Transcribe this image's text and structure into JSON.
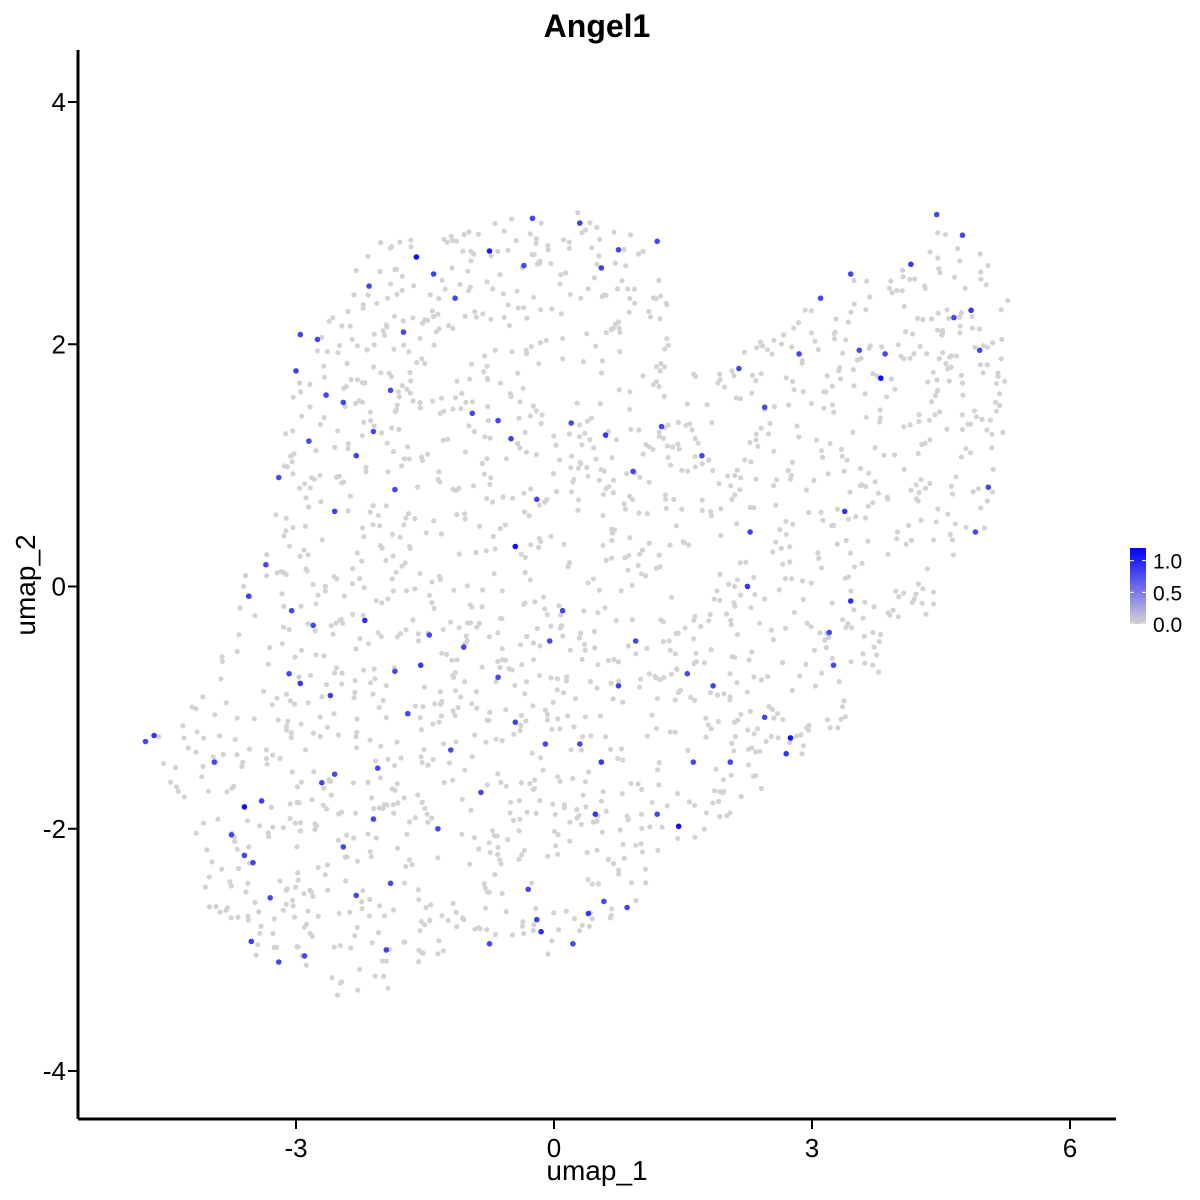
{
  "chart_data": {
    "type": "scatter",
    "title": "Angel1",
    "xlabel": "umap_1",
    "ylabel": "umap_2",
    "xlim": [
      -5.45,
      6.5
    ],
    "ylim": [
      -4.35,
      4.42
    ],
    "xticks": [
      -3,
      0,
      3,
      6
    ],
    "xtick_labels": [
      "-3",
      "0",
      "3",
      "6"
    ],
    "yticks": [
      -4,
      -2,
      0,
      2,
      4
    ],
    "ytick_labels": [
      "-4",
      "-2",
      "0",
      "2",
      "4"
    ],
    "grid": false,
    "legend": {
      "position": "right",
      "type": "colorbar",
      "ticks": [
        0.0,
        0.5,
        1.0
      ],
      "tick_labels": [
        "0.0",
        "0.5",
        "1.0"
      ],
      "range": [
        0,
        1.2
      ],
      "low_color": "#d3d3d3",
      "high_color": "#0000ff"
    },
    "colors": {
      "low": "#d3d3d3",
      "high": "#0000ff"
    },
    "point_count_estimate": 1900,
    "points": [
      [
        -4.75,
        -1.28,
        0.8
      ],
      [
        -4.65,
        -1.23,
        0.9
      ],
      [
        -3.6,
        -1.82,
        1.15
      ],
      [
        -3.95,
        -1.45,
        0.8
      ],
      [
        -3.75,
        -2.05,
        0.8
      ],
      [
        -3.55,
        -0.08,
        0.85
      ],
      [
        -3.4,
        -1.77,
        0.85
      ],
      [
        -3.5,
        -2.28,
        0.8
      ],
      [
        -3.3,
        -2.57,
        0.8
      ],
      [
        -3.52,
        -2.93,
        0.85
      ],
      [
        -3.08,
        -0.72,
        0.8
      ],
      [
        -2.95,
        -0.8,
        0.9
      ],
      [
        -2.8,
        -0.32,
        0.8
      ],
      [
        -2.7,
        -1.62,
        0.8
      ],
      [
        -2.6,
        -0.9,
        0.85
      ],
      [
        -2.45,
        -2.15,
        0.8
      ],
      [
        -2.3,
        -2.55,
        0.8
      ],
      [
        -2.2,
        -0.28,
        0.95
      ],
      [
        -2.05,
        -1.5,
        0.8
      ],
      [
        -1.85,
        -0.7,
        0.8
      ],
      [
        -1.7,
        -1.05,
        0.8
      ],
      [
        -1.55,
        -0.65,
        0.9
      ],
      [
        -1.35,
        -2.0,
        0.8
      ],
      [
        -1.2,
        -1.35,
        0.8
      ],
      [
        -1.05,
        -0.5,
        0.8
      ],
      [
        -0.85,
        -1.7,
        0.8
      ],
      [
        -0.65,
        -0.75,
        0.8
      ],
      [
        -0.45,
        -1.12,
        0.85
      ],
      [
        -0.45,
        0.33,
        1.15
      ],
      [
        -0.3,
        -2.5,
        0.8
      ],
      [
        -0.15,
        -2.85,
        0.95
      ],
      [
        -0.05,
        -0.45,
        0.8
      ],
      [
        0.1,
        -0.2,
        0.8
      ],
      [
        0.3,
        -1.3,
        0.8
      ],
      [
        0.48,
        -1.88,
        0.9
      ],
      [
        0.4,
        -2.7,
        0.9
      ],
      [
        0.58,
        -2.6,
        0.8
      ],
      [
        0.75,
        -0.82,
        0.85
      ],
      [
        0.95,
        -0.45,
        0.8
      ],
      [
        1.45,
        -1.98,
        1.15
      ],
      [
        1.55,
        -0.72,
        0.8
      ],
      [
        1.85,
        -0.82,
        0.8
      ],
      [
        2.05,
        -1.45,
        0.8
      ],
      [
        2.25,
        0.0,
        0.9
      ],
      [
        2.45,
        -1.08,
        0.8
      ],
      [
        2.75,
        -1.25,
        1.1
      ],
      [
        2.7,
        -1.38,
        0.9
      ],
      [
        3.2,
        -0.38,
        0.8
      ],
      [
        3.25,
        -0.65,
        0.8
      ],
      [
        3.38,
        0.62,
        0.9
      ],
      [
        3.45,
        -0.12,
        0.95
      ],
      [
        3.8,
        1.72,
        1.15
      ],
      [
        3.55,
        1.95,
        0.8
      ],
      [
        3.85,
        1.92,
        0.8
      ],
      [
        4.15,
        2.66,
        0.9
      ],
      [
        4.45,
        3.07,
        0.8
      ],
      [
        4.65,
        2.22,
        0.8
      ],
      [
        4.75,
        2.9,
        0.8
      ],
      [
        4.85,
        2.28,
        0.9
      ],
      [
        4.95,
        1.95,
        0.8
      ],
      [
        5.05,
        0.82,
        0.8
      ],
      [
        4.9,
        0.45,
        0.8
      ],
      [
        3.45,
        2.58,
        0.8
      ],
      [
        3.1,
        2.38,
        0.8
      ],
      [
        2.85,
        1.92,
        0.8
      ],
      [
        2.45,
        1.48,
        0.8
      ],
      [
        2.15,
        1.8,
        0.8
      ],
      [
        2.28,
        0.45,
        0.85
      ],
      [
        1.72,
        1.08,
        0.8
      ],
      [
        1.25,
        1.32,
        0.8
      ],
      [
        0.92,
        0.95,
        0.8
      ],
      [
        0.6,
        1.25,
        0.9
      ],
      [
        0.2,
        1.35,
        0.8
      ],
      [
        -0.2,
        0.72,
        0.8
      ],
      [
        -0.5,
        1.22,
        0.85
      ],
      [
        -0.65,
        1.37,
        0.8
      ],
      [
        -0.95,
        1.43,
        0.8
      ],
      [
        -1.15,
        2.38,
        0.8
      ],
      [
        -1.4,
        2.58,
        0.85
      ],
      [
        -1.6,
        2.72,
        1.15
      ],
      [
        -1.75,
        2.1,
        0.8
      ],
      [
        -1.9,
        1.62,
        0.8
      ],
      [
        -2.1,
        1.28,
        0.8
      ],
      [
        -2.3,
        1.08,
        0.85
      ],
      [
        -2.45,
        1.52,
        0.8
      ],
      [
        -2.65,
        1.58,
        0.8
      ],
      [
        -2.75,
        2.04,
        0.8
      ],
      [
        -2.85,
        1.2,
        0.8
      ],
      [
        -3.0,
        1.78,
        0.85
      ],
      [
        -3.2,
        0.9,
        0.8
      ],
      [
        -3.35,
        0.18,
        0.8
      ],
      [
        -3.05,
        -0.2,
        0.8
      ],
      [
        -2.55,
        0.62,
        0.85
      ],
      [
        -1.85,
        0.8,
        0.8
      ],
      [
        -0.75,
        2.77,
        1.05
      ],
      [
        0.3,
        3.0,
        0.85
      ],
      [
        -0.25,
        3.04,
        0.8
      ],
      [
        0.55,
        2.63,
        0.85
      ],
      [
        0.75,
        2.78,
        0.8
      ],
      [
        1.2,
        2.85,
        0.8
      ],
      [
        -0.35,
        2.65,
        0.8
      ],
      [
        -2.15,
        2.48,
        0.8
      ],
      [
        -2.95,
        2.08,
        0.8
      ],
      [
        -2.55,
        -1.55,
        0.8
      ],
      [
        -2.1,
        -1.92,
        0.8
      ],
      [
        -1.9,
        -2.45,
        0.8
      ],
      [
        -3.2,
        -3.1,
        0.8
      ],
      [
        -2.9,
        -3.05,
        0.8
      ],
      [
        -1.95,
        -3.0,
        0.85
      ],
      [
        -0.75,
        -2.95,
        0.8
      ],
      [
        -0.2,
        -2.75,
        0.85
      ],
      [
        0.85,
        -2.65,
        0.8
      ],
      [
        0.22,
        -2.95,
        0.8
      ],
      [
        1.2,
        -1.88,
        0.8
      ],
      [
        1.62,
        -1.45,
        0.8
      ],
      [
        0.55,
        -1.45,
        0.9
      ],
      [
        -0.1,
        -1.3,
        0.8
      ],
      [
        -1.45,
        -0.4,
        0.8
      ],
      [
        -3.6,
        -2.22,
        0.8
      ]
    ]
  }
}
